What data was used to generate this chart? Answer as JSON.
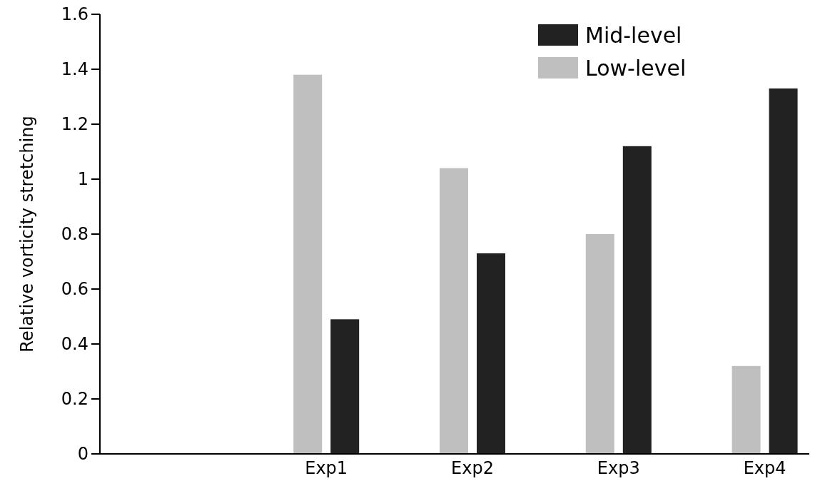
{
  "chart_data": {
    "type": "bar",
    "ylabel": "Relative vorticity stretching",
    "categories": [
      null,
      "Exp1",
      "Exp2",
      "Exp3",
      "Exp4"
    ],
    "series": [
      {
        "name": "Low-level",
        "color": "#bfbfbf",
        "values": [
          null,
          1.38,
          1.04,
          0.8,
          0.32
        ]
      },
      {
        "name": "Mid-level",
        "color": "#222222",
        "values": [
          null,
          0.49,
          0.73,
          1.12,
          1.33
        ]
      }
    ],
    "ylim": [
      0,
      1.6
    ],
    "yticks": [
      0,
      0.2,
      0.4,
      0.6,
      0.8,
      1,
      1.2,
      1.4,
      1.6
    ],
    "grid": false,
    "legend": "top right"
  }
}
